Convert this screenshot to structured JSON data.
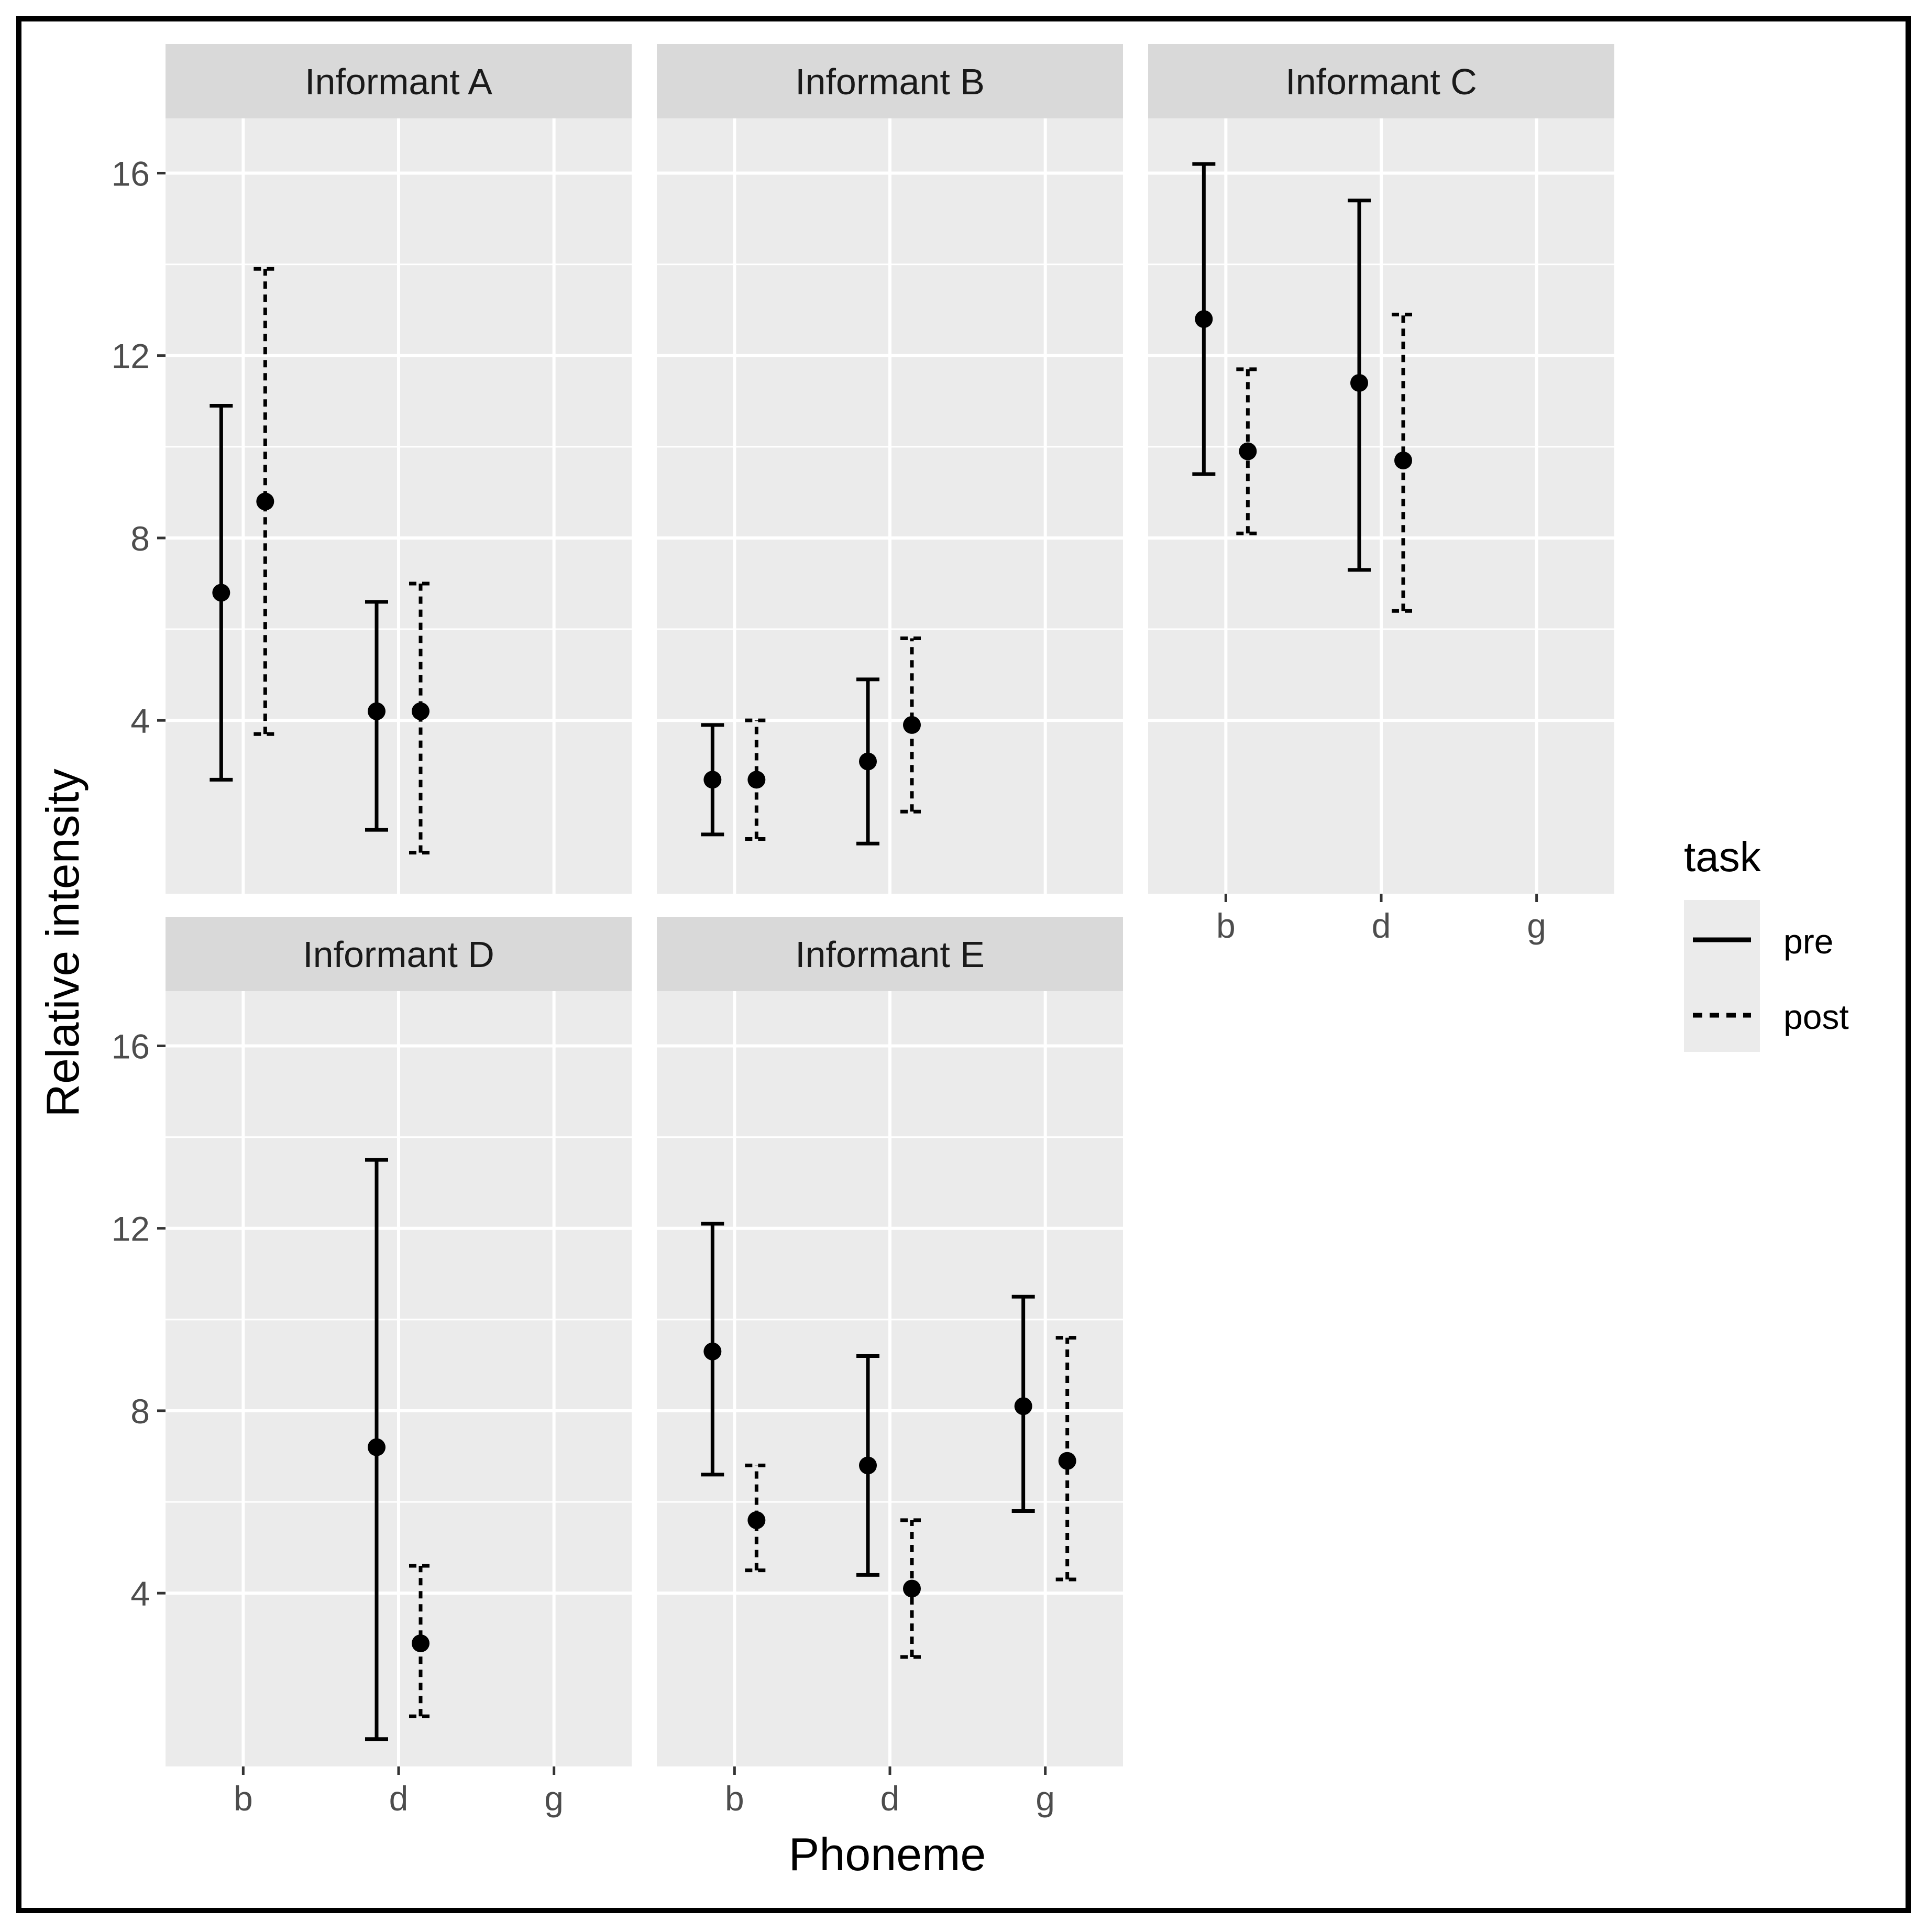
{
  "chart_data": {
    "type": "errorbar",
    "xlabel": "Phoneme",
    "ylabel": "Relative intensity",
    "categories": [
      "b",
      "d",
      "g"
    ],
    "yticks": [
      4,
      8,
      12,
      16
    ],
    "ylim": [
      0.2,
      17.2
    ],
    "grid": true,
    "legend": {
      "title": "task",
      "placement": "right",
      "entries": [
        {
          "label": "pre",
          "style": "solid"
        },
        {
          "label": "post",
          "style": "dashed"
        }
      ]
    },
    "panels": [
      {
        "title": "Informant A",
        "points": [
          {
            "phoneme": "b",
            "task": "pre",
            "mean": 6.8,
            "low": 2.7,
            "high": 10.9
          },
          {
            "phoneme": "b",
            "task": "post",
            "mean": 8.8,
            "low": 3.7,
            "high": 13.9
          },
          {
            "phoneme": "d",
            "task": "pre",
            "mean": 4.2,
            "low": 1.6,
            "high": 6.6
          },
          {
            "phoneme": "d",
            "task": "post",
            "mean": 4.2,
            "low": 1.1,
            "high": 7.0
          }
        ]
      },
      {
        "title": "Informant B",
        "points": [
          {
            "phoneme": "b",
            "task": "pre",
            "mean": 2.7,
            "low": 1.5,
            "high": 3.9
          },
          {
            "phoneme": "b",
            "task": "post",
            "mean": 2.7,
            "low": 1.4,
            "high": 4.0
          },
          {
            "phoneme": "d",
            "task": "pre",
            "mean": 3.1,
            "low": 1.3,
            "high": 4.9
          },
          {
            "phoneme": "d",
            "task": "post",
            "mean": 3.9,
            "low": 2.0,
            "high": 5.8
          }
        ]
      },
      {
        "title": "Informant C",
        "points": [
          {
            "phoneme": "b",
            "task": "pre",
            "mean": 12.8,
            "low": 9.4,
            "high": 16.2
          },
          {
            "phoneme": "b",
            "task": "post",
            "mean": 9.9,
            "low": 8.1,
            "high": 11.7
          },
          {
            "phoneme": "d",
            "task": "pre",
            "mean": 11.4,
            "low": 7.3,
            "high": 15.4
          },
          {
            "phoneme": "d",
            "task": "post",
            "mean": 9.7,
            "low": 6.4,
            "high": 12.9
          }
        ]
      },
      {
        "title": "Informant D",
        "points": [
          {
            "phoneme": "d",
            "task": "pre",
            "mean": 7.2,
            "low": 0.8,
            "high": 13.5
          },
          {
            "phoneme": "d",
            "task": "post",
            "mean": 2.9,
            "low": 1.3,
            "high": 4.6
          }
        ]
      },
      {
        "title": "Informant E",
        "points": [
          {
            "phoneme": "b",
            "task": "pre",
            "mean": 9.3,
            "low": 6.6,
            "high": 12.1
          },
          {
            "phoneme": "b",
            "task": "post",
            "mean": 5.6,
            "low": 4.5,
            "high": 6.8
          },
          {
            "phoneme": "d",
            "task": "pre",
            "mean": 6.8,
            "low": 4.4,
            "high": 9.2
          },
          {
            "phoneme": "d",
            "task": "post",
            "mean": 4.1,
            "low": 2.6,
            "high": 5.6
          },
          {
            "phoneme": "g",
            "task": "pre",
            "mean": 8.1,
            "low": 5.8,
            "high": 10.5
          },
          {
            "phoneme": "g",
            "task": "post",
            "mean": 6.9,
            "low": 4.3,
            "high": 9.6
          }
        ]
      }
    ]
  }
}
